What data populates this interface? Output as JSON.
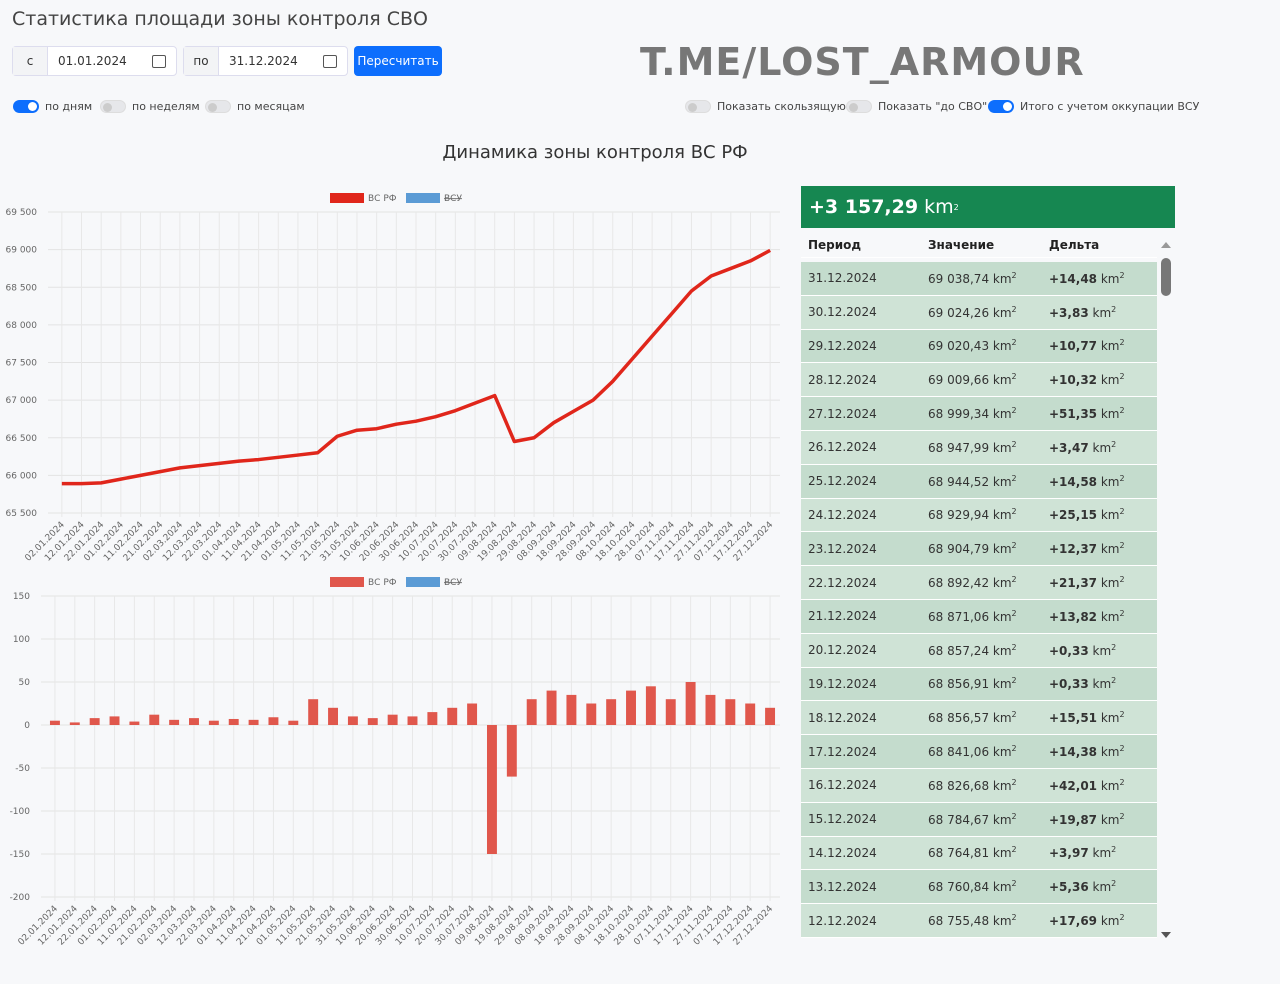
{
  "header": {
    "title": "Статистика площади зоны контроля СВО"
  },
  "controls": {
    "from_label": "с",
    "from_date": "01.01.2024",
    "to_label": "по",
    "to_date": "31.12.2024",
    "button": "Пересчитать"
  },
  "watermark": "T.ME/LOST_ARMOUR",
  "period_toggles": [
    {
      "label": "по дням",
      "on": true
    },
    {
      "label": "по неделям",
      "on": false
    },
    {
      "label": "по месяцам",
      "on": false
    }
  ],
  "option_toggles": [
    {
      "label": "Показать скользящую",
      "on": false
    },
    {
      "label": "Показать \"до СВО\"",
      "on": false
    },
    {
      "label": "Итого с учетом оккупации ВСУ",
      "on": true
    }
  ],
  "charts_title": "Динамика зоны контроля ВС РФ",
  "chart_data": [
    {
      "type": "line",
      "categories": [
        "02.01.2024",
        "12.01.2024",
        "22.01.2024",
        "01.02.2024",
        "11.02.2024",
        "21.02.2024",
        "02.03.2024",
        "12.03.2024",
        "22.03.2024",
        "01.04.2024",
        "11.04.2024",
        "21.04.2024",
        "01.05.2024",
        "11.05.2024",
        "21.05.2024",
        "31.05.2024",
        "10.06.2024",
        "20.06.2024",
        "30.06.2024",
        "10.07.2024",
        "20.07.2024",
        "30.07.2024",
        "09.08.2024",
        "19.08.2024",
        "29.08.2024",
        "08.09.2024",
        "18.09.2024",
        "28.09.2024",
        "08.10.2024",
        "18.10.2024",
        "28.10.2024",
        "07.11.2024",
        "17.11.2024",
        "27.11.2024",
        "07.12.2024",
        "17.12.2024",
        "27.12.2024"
      ],
      "series": [
        {
          "name": "ВС РФ",
          "color": "#e0261b",
          "values": [
            65890,
            65890,
            65900,
            65950,
            66000,
            66050,
            66100,
            66130,
            66160,
            66190,
            66210,
            66240,
            66270,
            66300,
            66520,
            66600,
            66620,
            66680,
            66720,
            66780,
            66860,
            66960,
            67060,
            66450,
            66500,
            66700,
            66850,
            67000,
            67250,
            67550,
            67850,
            68150,
            68450,
            68650,
            68750,
            68850,
            68990
          ]
        },
        {
          "name": "ВСУ",
          "color": "#5b9bd5",
          "hidden": true,
          "values": [
            null,
            null,
            null,
            null,
            null,
            null,
            null,
            null,
            null,
            null,
            null,
            null,
            null,
            null,
            null,
            null,
            null,
            null,
            null,
            null,
            null,
            null,
            null,
            null,
            null,
            null,
            null,
            null,
            null,
            null,
            null,
            null,
            null,
            null,
            null,
            null,
            null
          ]
        }
      ],
      "ylim": [
        65500,
        69500
      ],
      "yticks": [
        {
          "value": 65500,
          "label": "65 500"
        },
        {
          "value": 66000,
          "label": "66 000"
        },
        {
          "value": 66500,
          "label": "66 500"
        },
        {
          "value": 67000,
          "label": "67 000"
        },
        {
          "value": 67500,
          "label": "67 500"
        },
        {
          "value": 68000,
          "label": "68 000"
        },
        {
          "value": 68500,
          "label": "68 500"
        },
        {
          "value": 69000,
          "label": "69 000"
        },
        {
          "value": 69500,
          "label": "69 500"
        }
      ],
      "grid": true
    },
    {
      "type": "bar",
      "categories": [
        "02.01.2024",
        "12.01.2024",
        "22.01.2024",
        "01.02.2024",
        "11.02.2024",
        "21.02.2024",
        "02.03.2024",
        "12.03.2024",
        "22.03.2024",
        "01.04.2024",
        "11.04.2024",
        "21.04.2024",
        "01.05.2024",
        "11.05.2024",
        "21.05.2024",
        "31.05.2024",
        "10.06.2024",
        "20.06.2024",
        "30.06.2024",
        "10.07.2024",
        "20.07.2024",
        "30.07.2024",
        "09.08.2024",
        "19.08.2024",
        "29.08.2024",
        "08.09.2024",
        "18.09.2024",
        "28.09.2024",
        "08.10.2024",
        "18.10.2024",
        "28.10.2024",
        "07.11.2024",
        "17.11.2024",
        "27.11.2024",
        "07.12.2024",
        "17.12.2024",
        "27.12.2024"
      ],
      "series": [
        {
          "name": "ВС РФ",
          "color": "#e0574c",
          "values": [
            5,
            3,
            8,
            10,
            4,
            12,
            6,
            8,
            5,
            7,
            6,
            9,
            5,
            30,
            20,
            10,
            8,
            12,
            10,
            15,
            20,
            25,
            -150,
            -60,
            30,
            40,
            35,
            25,
            30,
            40,
            45,
            30,
            50,
            35,
            30,
            25,
            20
          ]
        },
        {
          "name": "ВСУ",
          "color": "#5b9bd5",
          "hidden": true,
          "values": [
            null,
            null,
            null,
            null,
            null,
            null,
            null,
            null,
            null,
            null,
            null,
            null,
            null,
            null,
            null,
            null,
            null,
            null,
            null,
            null,
            null,
            null,
            null,
            null,
            null,
            null,
            null,
            null,
            null,
            null,
            null,
            null,
            null,
            null,
            null,
            null,
            null
          ]
        }
      ],
      "ylim": [
        -200,
        150
      ],
      "yticks": [
        -200,
        -150,
        -100,
        -50,
        0,
        50,
        100,
        150
      ],
      "grid": true
    }
  ],
  "table": {
    "total": "+3 157,29",
    "unit": "km",
    "unit_power": "2",
    "columns": [
      "Период",
      "Значение",
      "Дельта"
    ],
    "rows": [
      [
        "31.12.2024",
        "69 038,74",
        "+14,48"
      ],
      [
        "30.12.2024",
        "69 024,26",
        "+3,83"
      ],
      [
        "29.12.2024",
        "69 020,43",
        "+10,77"
      ],
      [
        "28.12.2024",
        "69 009,66",
        "+10,32"
      ],
      [
        "27.12.2024",
        "68 999,34",
        "+51,35"
      ],
      [
        "26.12.2024",
        "68 947,99",
        "+3,47"
      ],
      [
        "25.12.2024",
        "68 944,52",
        "+14,58"
      ],
      [
        "24.12.2024",
        "68 929,94",
        "+25,15"
      ],
      [
        "23.12.2024",
        "68 904,79",
        "+12,37"
      ],
      [
        "22.12.2024",
        "68 892,42",
        "+21,37"
      ],
      [
        "21.12.2024",
        "68 871,06",
        "+13,82"
      ],
      [
        "20.12.2024",
        "68 857,24",
        "+0,33"
      ],
      [
        "19.12.2024",
        "68 856,91",
        "+0,33"
      ],
      [
        "18.12.2024",
        "68 856,57",
        "+15,51"
      ],
      [
        "17.12.2024",
        "68 841,06",
        "+14,38"
      ],
      [
        "16.12.2024",
        "68 826,68",
        "+42,01"
      ],
      [
        "15.12.2024",
        "68 784,67",
        "+19,87"
      ],
      [
        "14.12.2024",
        "68 764,81",
        "+3,97"
      ],
      [
        "13.12.2024",
        "68 760,84",
        "+5,36"
      ],
      [
        "12.12.2024",
        "68 755,48",
        "+17,69"
      ]
    ]
  }
}
